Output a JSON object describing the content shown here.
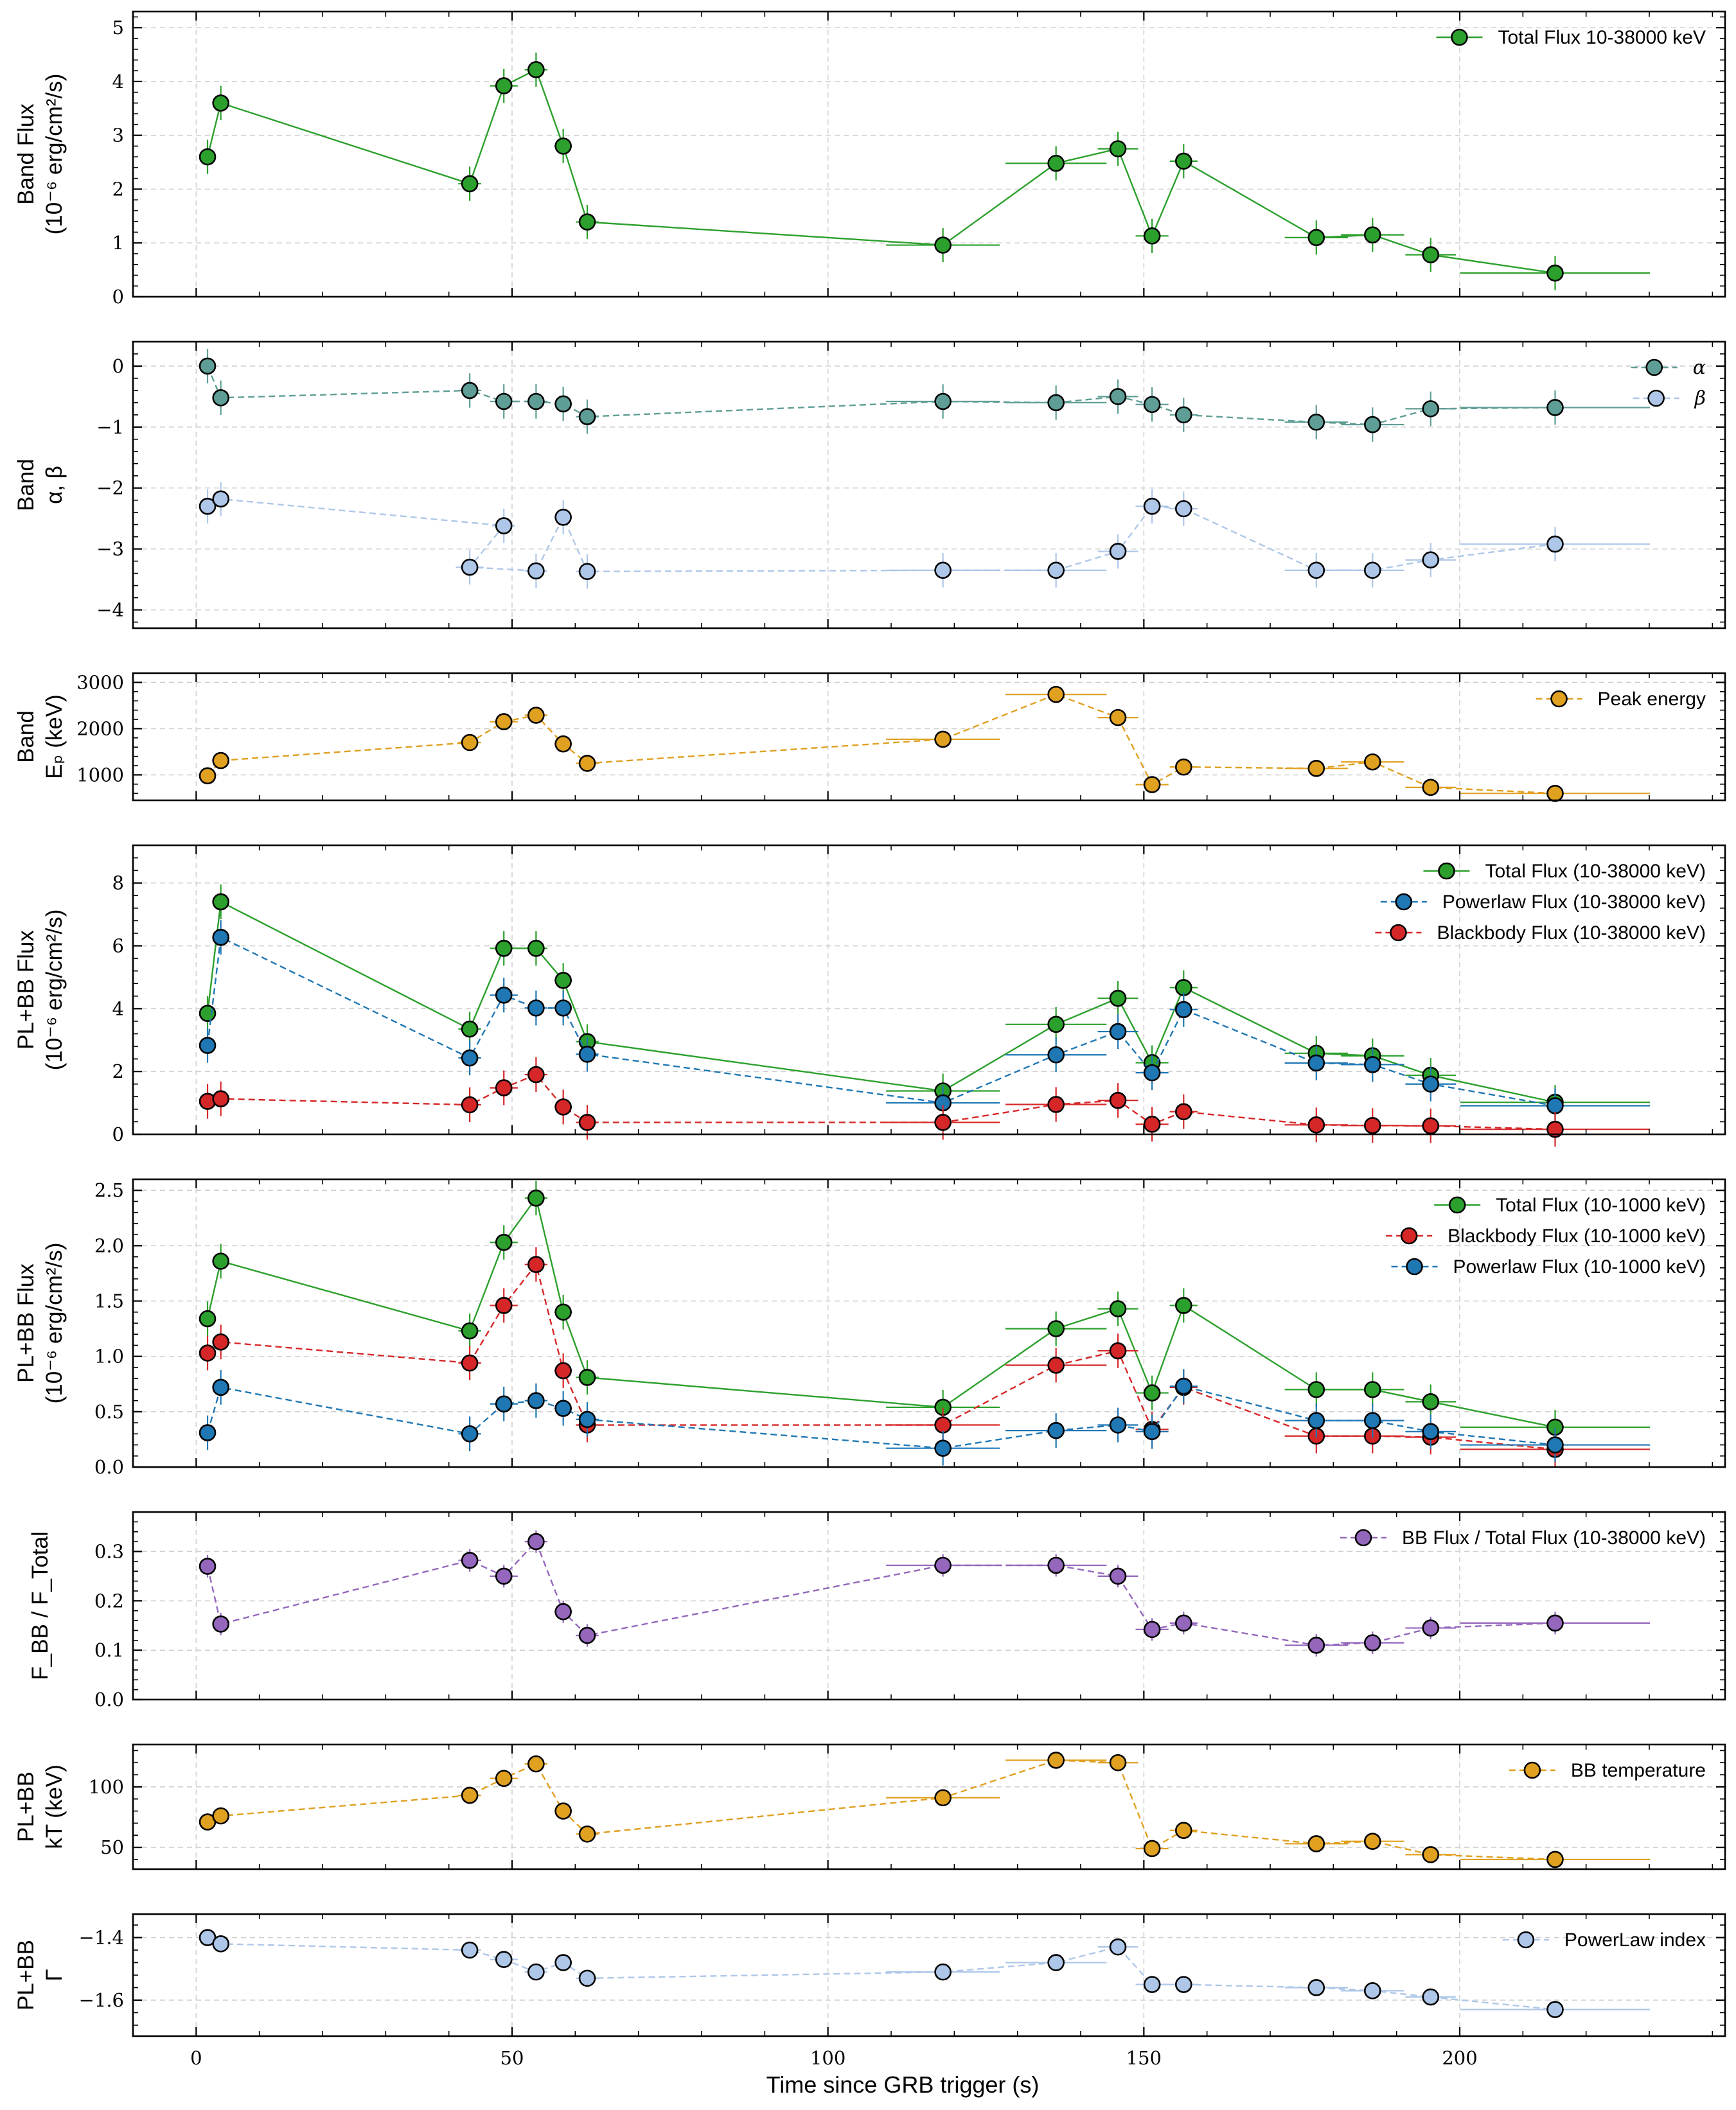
{
  "colors": {
    "green": "#2ca02c",
    "blue": "#1f77b4",
    "red": "#d62728",
    "teal": "#5f9e96",
    "lightblue": "#aec7e8",
    "orange": "#e0a020",
    "purple": "#9467bd"
  },
  "chart_data": [
    {
      "type": "line",
      "ylabel": [
        "Band Flux",
        "(10⁻⁶ erg/cm²/s)"
      ],
      "ylim": [
        0,
        5.3
      ],
      "yticks": [
        0,
        1,
        2,
        3,
        4,
        5
      ],
      "yticklabels": [
        "0",
        "1",
        "2",
        "3",
        "4",
        "5"
      ],
      "legend": "top-right",
      "series": [
        {
          "name": "Total Flux 10-38000 keV",
          "color": "green",
          "style": "solid",
          "x": [
            1.8,
            3.9,
            43.3,
            48.7,
            53.8,
            58.1,
            61.9,
            118.2,
            136.1,
            145.9,
            151.3,
            156.3,
            177.3,
            186.2,
            195.4,
            215.1
          ],
          "y": [
            2.6,
            3.6,
            2.1,
            3.92,
            4.22,
            2.8,
            1.39,
            0.96,
            2.48,
            2.75,
            1.13,
            2.52,
            1.1,
            1.15,
            0.78,
            0.44
          ]
        }
      ]
    },
    {
      "type": "line",
      "ylabel": [
        "Band",
        "α, β"
      ],
      "ylim": [
        -4.3,
        0.4
      ],
      "yticks": [
        -4,
        -3,
        -2,
        -1,
        0
      ],
      "yticklabels": [
        "−4",
        "−3",
        "−2",
        "−1",
        "0"
      ],
      "legend": "top-right",
      "series": [
        {
          "name": "α",
          "color": "teal",
          "style": "dashed",
          "x": [
            1.8,
            3.9,
            43.3,
            48.7,
            53.8,
            58.1,
            61.9,
            118.2,
            136.1,
            145.9,
            151.3,
            156.3,
            177.3,
            186.2,
            195.4,
            215.1
          ],
          "y": [
            0.0,
            -0.52,
            -0.4,
            -0.58,
            -0.58,
            -0.62,
            -0.83,
            -0.58,
            -0.6,
            -0.5,
            -0.63,
            -0.8,
            -0.92,
            -0.96,
            -0.7,
            -0.68
          ]
        },
        {
          "name": "β",
          "color": "lightblue",
          "style": "dashed",
          "x": [
            1.8,
            3.9,
            48.7,
            43.3,
            53.8,
            58.1,
            61.9,
            118.2,
            136.1,
            145.9,
            151.3,
            156.3,
            177.3,
            186.2,
            195.4,
            215.1
          ],
          "y": [
            -2.3,
            -2.18,
            -2.62,
            -3.3,
            -3.36,
            -2.48,
            -3.37,
            -3.35,
            -3.35,
            -3.04,
            -2.3,
            -2.34,
            -3.35,
            -3.35,
            -3.18,
            -2.92
          ]
        }
      ]
    },
    {
      "type": "line",
      "ylabel": [
        "Band",
        "Eₚ (keV)"
      ],
      "ylim": [
        450,
        3200
      ],
      "yticks": [
        1000,
        2000,
        3000
      ],
      "yticklabels": [
        "1000",
        "2000",
        "3000"
      ],
      "legend": "top-right",
      "series": [
        {
          "name": "Peak energy",
          "color": "orange",
          "style": "dashed",
          "x": [
            1.8,
            3.9,
            43.3,
            48.7,
            53.8,
            58.1,
            61.9,
            118.2,
            136.1,
            145.9,
            151.3,
            156.3,
            177.3,
            186.2,
            195.4,
            215.1
          ],
          "y": [
            980,
            1310,
            1700,
            2150,
            2290,
            1670,
            1250,
            1770,
            2740,
            2240,
            790,
            1170,
            1140,
            1280,
            730,
            600
          ]
        }
      ]
    },
    {
      "type": "line",
      "ylabel": [
        "PL+BB Flux",
        "(10⁻⁶ erg/cm²/s)"
      ],
      "ylim": [
        0,
        9.2
      ],
      "yticks": [
        0,
        2,
        4,
        6,
        8
      ],
      "yticklabels": [
        "0",
        "2",
        "4",
        "6",
        "8"
      ],
      "legend": "top-right",
      "series": [
        {
          "name": "Total Flux (10-38000 keV)",
          "color": "green",
          "style": "solid",
          "x": [
            1.8,
            3.9,
            43.3,
            48.7,
            53.8,
            58.1,
            61.9,
            118.2,
            136.1,
            145.9,
            151.3,
            156.3,
            177.3,
            186.2,
            195.4,
            215.1
          ],
          "y": [
            3.85,
            7.4,
            3.35,
            5.92,
            5.92,
            4.9,
            2.95,
            1.38,
            3.5,
            4.33,
            2.28,
            4.67,
            2.58,
            2.5,
            1.88,
            1.02
          ]
        },
        {
          "name": "Powerlaw Flux (10-38000 keV)",
          "color": "blue",
          "style": "dashed",
          "x": [
            1.8,
            3.9,
            43.3,
            48.7,
            53.8,
            58.1,
            61.9,
            118.2,
            136.1,
            145.9,
            151.3,
            156.3,
            177.3,
            186.2,
            195.4,
            215.1
          ],
          "y": [
            2.83,
            6.27,
            2.43,
            4.43,
            4.02,
            4.02,
            2.55,
            1.0,
            2.53,
            3.27,
            1.96,
            3.97,
            2.27,
            2.22,
            1.6,
            0.91
          ]
        },
        {
          "name": "Blackbody Flux (10-38000 keV)",
          "color": "red",
          "style": "dashed",
          "x": [
            1.8,
            3.9,
            43.3,
            48.7,
            53.8,
            58.1,
            61.9,
            118.2,
            136.1,
            145.9,
            151.3,
            156.3,
            177.3,
            186.2,
            195.4,
            215.1
          ],
          "y": [
            1.05,
            1.13,
            0.94,
            1.48,
            1.9,
            0.87,
            0.38,
            0.38,
            0.95,
            1.08,
            0.32,
            0.72,
            0.3,
            0.28,
            0.27,
            0.16
          ]
        }
      ]
    },
    {
      "type": "line",
      "ylabel": [
        "PL+BB Flux",
        "(10⁻⁶ erg/cm²/s)"
      ],
      "ylim": [
        0,
        2.6
      ],
      "yticks": [
        0,
        0.5,
        1.0,
        1.5,
        2.0,
        2.5
      ],
      "yticklabels": [
        "0.0",
        "0.5",
        "1.0",
        "1.5",
        "2.0",
        "2.5"
      ],
      "legend": "top-right",
      "series": [
        {
          "name": "Total Flux (10-1000 keV)",
          "color": "green",
          "style": "solid",
          "x": [
            1.8,
            3.9,
            43.3,
            48.7,
            53.8,
            58.1,
            61.9,
            118.2,
            136.1,
            145.9,
            151.3,
            156.3,
            177.3,
            186.2,
            195.4,
            215.1
          ],
          "y": [
            1.34,
            1.86,
            1.23,
            2.03,
            2.43,
            1.4,
            0.81,
            0.54,
            1.25,
            1.43,
            0.67,
            1.46,
            0.7,
            0.7,
            0.59,
            0.36
          ]
        },
        {
          "name": "Blackbody Flux (10-1000 keV)",
          "color": "red",
          "style": "dashed",
          "x": [
            1.8,
            3.9,
            43.3,
            48.7,
            53.8,
            58.1,
            61.9,
            118.2,
            136.1,
            145.9,
            151.3,
            156.3,
            177.3,
            186.2,
            195.4,
            215.1
          ],
          "y": [
            1.03,
            1.13,
            0.94,
            1.46,
            1.83,
            0.87,
            0.38,
            0.38,
            0.92,
            1.05,
            0.34,
            0.72,
            0.28,
            0.28,
            0.27,
            0.16
          ]
        },
        {
          "name": "Powerlaw Flux (10-1000 keV)",
          "color": "blue",
          "style": "dashed",
          "x": [
            1.8,
            3.9,
            43.3,
            48.7,
            53.8,
            58.1,
            61.9,
            118.2,
            136.1,
            145.9,
            151.3,
            156.3,
            177.3,
            186.2,
            195.4,
            215.1
          ],
          "y": [
            0.31,
            0.72,
            0.3,
            0.57,
            0.6,
            0.53,
            0.43,
            0.17,
            0.33,
            0.38,
            0.32,
            0.73,
            0.42,
            0.42,
            0.32,
            0.2
          ]
        }
      ]
    },
    {
      "type": "line",
      "ylabel": [
        "F_BB / F_Total"
      ],
      "ylim": [
        0,
        0.38
      ],
      "yticks": [
        0,
        0.1,
        0.2,
        0.3
      ],
      "yticklabels": [
        "0.0",
        "0.1",
        "0.2",
        "0.3"
      ],
      "legend": "top-right",
      "series": [
        {
          "name": "BB Flux / Total Flux (10-38000 keV)",
          "color": "purple",
          "style": "dashed",
          "x": [
            1.8,
            3.9,
            43.3,
            48.7,
            53.8,
            58.1,
            61.9,
            118.2,
            136.1,
            145.9,
            151.3,
            156.3,
            177.3,
            186.2,
            195.4,
            215.1
          ],
          "y": [
            0.27,
            0.153,
            0.282,
            0.25,
            0.32,
            0.178,
            0.13,
            0.272,
            0.272,
            0.25,
            0.142,
            0.155,
            0.11,
            0.115,
            0.145,
            0.155
          ]
        }
      ]
    },
    {
      "type": "line",
      "ylabel": [
        "PL+BB",
        "kT (keV)"
      ],
      "ylim": [
        32,
        135
      ],
      "yticks": [
        50,
        100
      ],
      "yticklabels": [
        "50",
        "100"
      ],
      "legend": "top-right",
      "series": [
        {
          "name": "BB temperature",
          "color": "orange",
          "style": "dashed",
          "x": [
            1.8,
            3.9,
            43.3,
            48.7,
            53.8,
            58.1,
            61.9,
            118.2,
            136.1,
            145.9,
            151.3,
            156.3,
            177.3,
            186.2,
            195.4,
            215.1
          ],
          "y": [
            71,
            76,
            93,
            107,
            119,
            80,
            61,
            91,
            122,
            120,
            49,
            64,
            53,
            55,
            44,
            40
          ]
        }
      ]
    },
    {
      "type": "line",
      "ylabel": [
        "PL+BB",
        "Γ"
      ],
      "ylim": [
        -1.715,
        -1.325
      ],
      "yticks": [
        -1.6,
        -1.4
      ],
      "yticklabels": [
        "−1.6",
        "−1.4"
      ],
      "legend": "top-right",
      "series": [
        {
          "name": "PowerLaw index",
          "color": "lightblue",
          "style": "dashed",
          "x": [
            1.8,
            3.9,
            43.3,
            48.7,
            53.8,
            58.1,
            61.9,
            118.2,
            136.1,
            145.9,
            151.3,
            156.3,
            177.3,
            186.2,
            195.4,
            215.1
          ],
          "y": [
            -1.4,
            -1.42,
            -1.44,
            -1.47,
            -1.51,
            -1.48,
            -1.53,
            -1.51,
            -1.48,
            -1.43,
            -1.55,
            -1.55,
            -1.56,
            -1.57,
            -1.59,
            -1.63
          ]
        }
      ]
    }
  ],
  "xaxis": {
    "label": "Time since GRB trigger (s)",
    "xlim": [
      -10,
      242
    ],
    "ticks": [
      0,
      50,
      100,
      150,
      200
    ],
    "ticklabels": [
      "0",
      "50",
      "100",
      "150",
      "200"
    ]
  }
}
